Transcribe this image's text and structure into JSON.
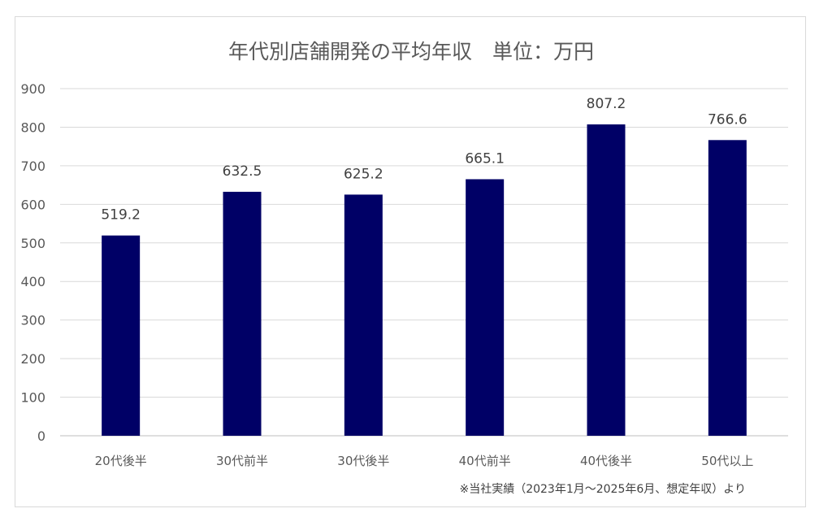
{
  "chart_data": {
    "type": "bar",
    "title": "年代別店舗開発の平均年収　単位：万円",
    "categories": [
      "20代後半",
      "30代前半",
      "30代後半",
      "40代前半",
      "40代後半",
      "50代以上"
    ],
    "values": [
      519.2,
      632.5,
      625.2,
      665.1,
      807.2,
      766.6
    ],
    "data_labels": [
      "519.2",
      "632.5",
      "625.2",
      "665.1",
      "807.2",
      "766.6"
    ],
    "yticks": [
      "0",
      "100",
      "200",
      "300",
      "400",
      "500",
      "600",
      "700",
      "800",
      "900"
    ],
    "ylim": [
      0,
      900
    ],
    "grid": true,
    "bar_color": "#000066",
    "footnote": "※当社実績（2023年1月〜2025年6月、想定年収）より"
  }
}
